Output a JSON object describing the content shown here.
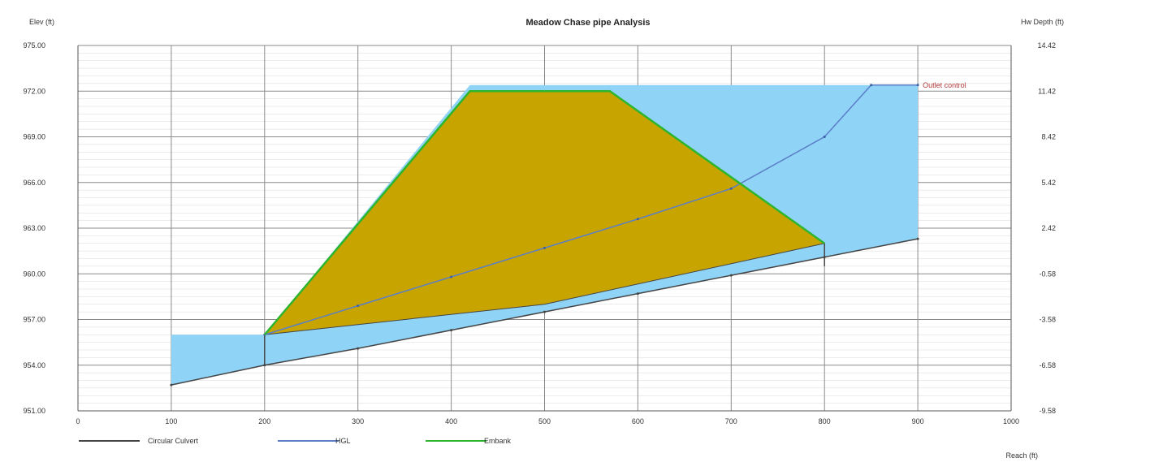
{
  "chart_data": {
    "type": "area",
    "title": "Meadow Chase pipe Analysis",
    "ylabel_left": "Elev (ft)",
    "ylabel_right": "Hw Depth (ft)",
    "xlabel": "Reach (ft)",
    "xlim": [
      0,
      1000
    ],
    "ylim": [
      951,
      975
    ],
    "x_ticks": [
      "0",
      "100",
      "200",
      "300",
      "400",
      "500",
      "600",
      "700",
      "800",
      "900",
      "1000"
    ],
    "y_ticks_left": [
      "951.00",
      "954.00",
      "957.00",
      "960.00",
      "963.00",
      "966.00",
      "969.00",
      "972.00",
      "975.00"
    ],
    "y_ticks_right": [
      "-9.58",
      "-6.58",
      "-3.58",
      "-0.58",
      "2.42",
      "5.42",
      "8.42",
      "11.42",
      "14.42"
    ],
    "grid": true,
    "legend_position": "bottom",
    "annotation": "Outlet control",
    "series": [
      {
        "name": "Circular Culvert",
        "color": "#444444",
        "x": [
          100,
          200,
          300,
          400,
          500,
          600,
          700,
          800,
          900
        ],
        "y": [
          952.7,
          954.0,
          955.1,
          956.3,
          957.5,
          958.7,
          959.9,
          961.1,
          962.3
        ]
      },
      {
        "name": "HGL",
        "color": "#5b7fc7",
        "x": [
          200,
          300,
          400,
          500,
          600,
          700,
          800,
          850,
          900
        ],
        "y": [
          956.0,
          957.9,
          959.8,
          961.7,
          963.6,
          965.6,
          969.0,
          972.4,
          972.4
        ]
      },
      {
        "name": "Embank",
        "color": "#2db52d",
        "x": [
          200,
          420,
          570,
          800,
          800
        ],
        "y": [
          956.0,
          972.0,
          972.0,
          962.0,
          960.5
        ]
      }
    ],
    "embankment_fill": "#c8a400",
    "water_fill": "#8fd3f7"
  }
}
